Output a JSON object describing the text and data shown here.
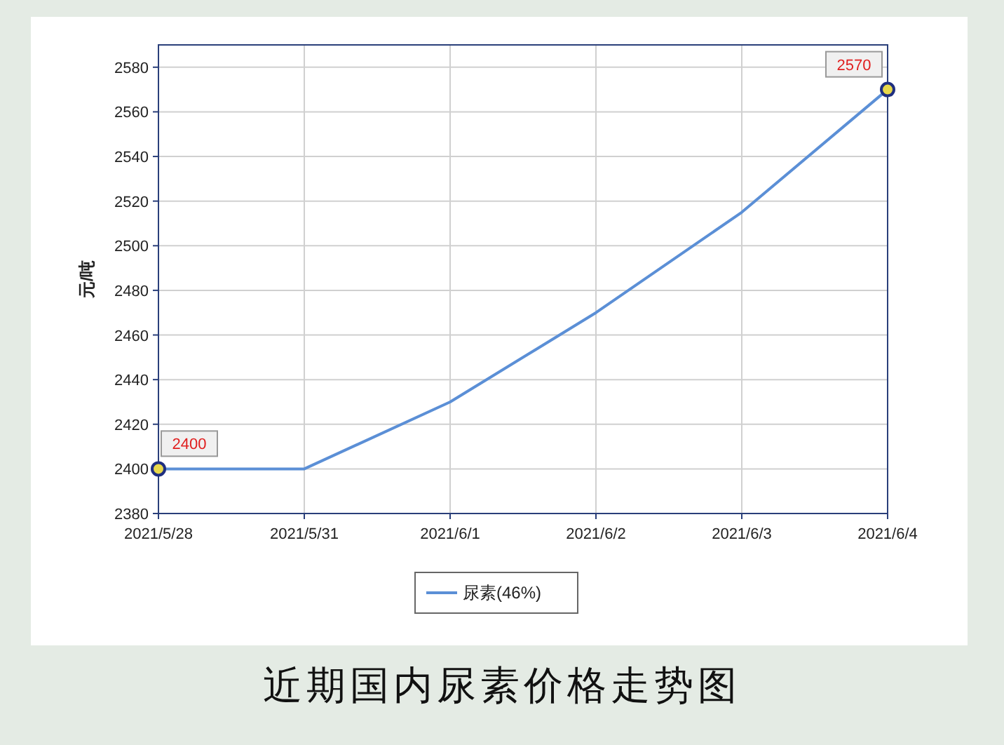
{
  "chart_data": {
    "type": "line",
    "title": "近期国内尿素价格走势图",
    "ylabel": "元/吨",
    "categories": [
      "2021/5/28",
      "2021/5/31",
      "2021/6/1",
      "2021/6/2",
      "2021/6/3",
      "2021/6/4"
    ],
    "series": [
      {
        "name": "尿素(46%)",
        "color": "#5b8fd6",
        "values": [
          2400,
          2400,
          2430,
          2470,
          2515,
          2570
        ],
        "value_labels": [
          "2400",
          null,
          null,
          null,
          null,
          "2570"
        ]
      }
    ],
    "ylim": [
      2380,
      2590
    ],
    "yticks": [
      2380,
      2400,
      2420,
      2440,
      2460,
      2480,
      2500,
      2520,
      2540,
      2560,
      2580
    ],
    "grid": true,
    "legend": "bottom"
  }
}
